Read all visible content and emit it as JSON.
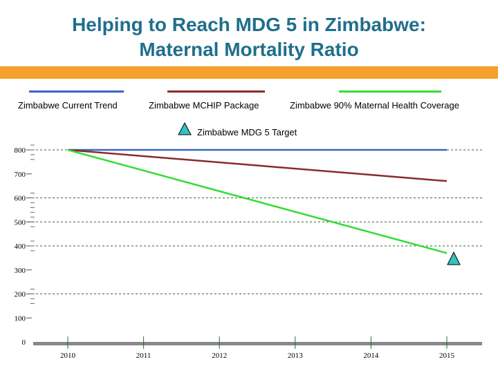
{
  "title_lines": [
    "Helping to Reach MDG 5 in Zimbabwe:",
    "Maternal Mortality Ratio"
  ],
  "chart_data": {
    "type": "line",
    "title": "Helping to Reach MDG 5 in Zimbabwe: Maternal Mortality Ratio",
    "x": [
      2010,
      2015
    ],
    "xticks": [
      "2010",
      "2011",
      "2012",
      "2013",
      "2014",
      "2015"
    ],
    "yticks": [
      "0",
      "100",
      "200",
      "300",
      "400",
      "500",
      "600",
      "700",
      "800"
    ],
    "ylim": [
      0,
      800
    ],
    "gridlines_dashed_at": [
      200,
      400,
      500,
      600,
      800
    ],
    "legend_placement": "top",
    "series": [
      {
        "name": "Zimbabwe Current Trend",
        "values": [
          800,
          800
        ],
        "color": "#3a66c4"
      },
      {
        "name": "Zimbabwe MCHIP Package",
        "values": [
          800,
          670
        ],
        "color": "#8b2a2a"
      },
      {
        "name": "Zimbabwe 90% Maternal Health Coverage",
        "values": [
          800,
          370
        ],
        "color": "#33dd33"
      }
    ],
    "target": {
      "name": "Zimbabwe MDG 5 Target",
      "x": 2015,
      "value": 345,
      "color": "#33c1c1",
      "marker": "triangle"
    }
  }
}
